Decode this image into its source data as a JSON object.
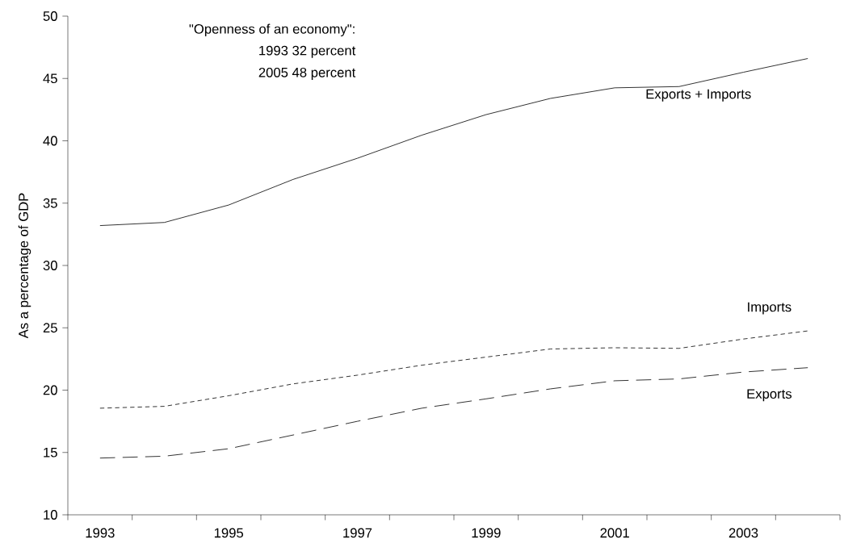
{
  "chart_data": {
    "type": "line",
    "ylabel": "As a percentage of GDP",
    "categories": [
      "1993",
      null,
      "1995",
      null,
      "1997",
      null,
      "1999",
      null,
      "2001",
      null,
      "2003",
      null
    ],
    "series": [
      {
        "name": "Exports + Imports",
        "color": "#000000",
        "line_style": "solid",
        "values": [
          33.2,
          33.45,
          34.85,
          36.9,
          38.6,
          40.45,
          42.1,
          43.4,
          44.25,
          44.35,
          45.5,
          46.6
        ]
      },
      {
        "name": "Imports",
        "color": "#000000",
        "line_style": "dotted",
        "values": [
          18.55,
          18.7,
          19.55,
          20.5,
          21.2,
          22.0,
          22.65,
          23.3,
          23.4,
          23.35,
          24.1,
          24.75
        ]
      },
      {
        "name": "Exports",
        "color": "#000000",
        "line_style": "dashed",
        "values": [
          14.55,
          14.7,
          15.3,
          16.4,
          17.5,
          18.55,
          19.3,
          20.1,
          20.75,
          20.9,
          21.45,
          21.8
        ]
      }
    ],
    "ylim": [
      10,
      50
    ],
    "yticks": [
      10,
      15,
      20,
      25,
      30,
      35,
      40,
      45,
      50
    ],
    "grid": false,
    "marker": "none",
    "annotations": [
      "\"Openness of an economy\":",
      "1993   32 percent",
      "2005   48 percent"
    ]
  }
}
